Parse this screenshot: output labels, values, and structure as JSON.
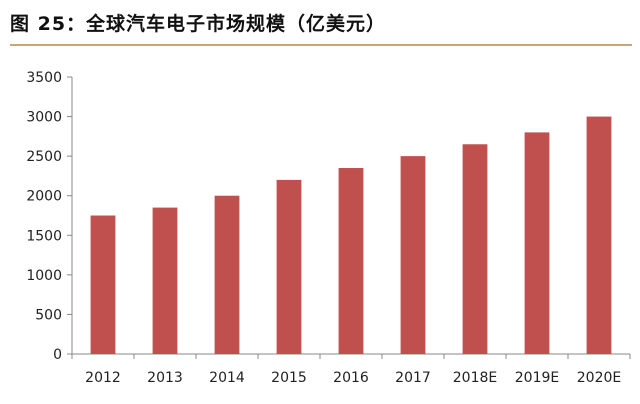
{
  "header": {
    "title": "图 25：全球汽车电子市场规模（亿美元）"
  },
  "colors": {
    "bar": "#c0504d",
    "title_rule": "#c8a96a",
    "axis": "#888888",
    "text": "#222222"
  },
  "chart_data": {
    "type": "bar",
    "title": "图 25：全球汽车电子市场规模（亿美元）",
    "xlabel": "",
    "ylabel": "",
    "categories": [
      "2012",
      "2013",
      "2014",
      "2015",
      "2016",
      "2017",
      "2018E",
      "2019E",
      "2020E"
    ],
    "values": [
      1750,
      1850,
      2000,
      2200,
      2350,
      2500,
      2650,
      2800,
      3000
    ],
    "ylim": [
      0,
      3500
    ],
    "yticks": [
      "0",
      "500",
      "1000",
      "1500",
      "2000",
      "2500",
      "3000",
      "3500"
    ],
    "grid": false,
    "legend": "none"
  }
}
